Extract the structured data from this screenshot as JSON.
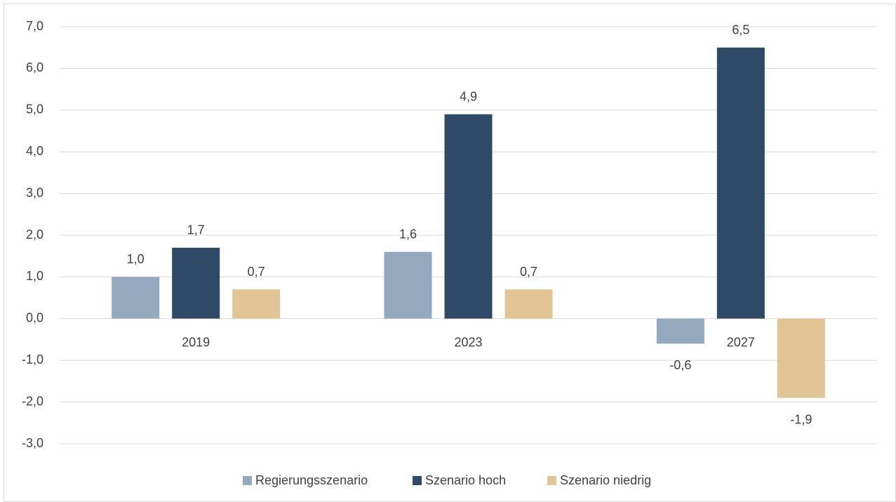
{
  "chart_data": {
    "type": "bar",
    "categories": [
      "2019",
      "2023",
      "2027"
    ],
    "series": [
      {
        "name": "Regierungsszenario",
        "color": "#94a9be",
        "values": [
          1.0,
          1.6,
          -0.6
        ],
        "value_labels": [
          "1,0",
          "1,6",
          "-0,6"
        ]
      },
      {
        "name": "Szenario hoch",
        "color": "#2e4a66",
        "values": [
          1.7,
          4.9,
          6.5
        ],
        "value_labels": [
          "1,7",
          "4,9",
          "6,5"
        ]
      },
      {
        "name": "Szenario niedrig",
        "color": "#e2c594",
        "values": [
          0.7,
          0.7,
          -1.9
        ],
        "value_labels": [
          "0,7",
          "0,7",
          "-1,9"
        ]
      }
    ],
    "ylim": [
      -3,
      7
    ],
    "yticks": [
      {
        "value": -3,
        "label": "-3,0"
      },
      {
        "value": -2,
        "label": "-2,0"
      },
      {
        "value": -1,
        "label": "-1,0"
      },
      {
        "value": 0,
        "label": "0,0"
      },
      {
        "value": 1,
        "label": "1,0"
      },
      {
        "value": 2,
        "label": "2,0"
      },
      {
        "value": 3,
        "label": "3,0"
      },
      {
        "value": 4,
        "label": "4,0"
      },
      {
        "value": 5,
        "label": "5,0"
      },
      {
        "value": 6,
        "label": "6,0"
      },
      {
        "value": 7,
        "label": "7,0"
      }
    ],
    "grid": true,
    "legend": "bottom"
  }
}
